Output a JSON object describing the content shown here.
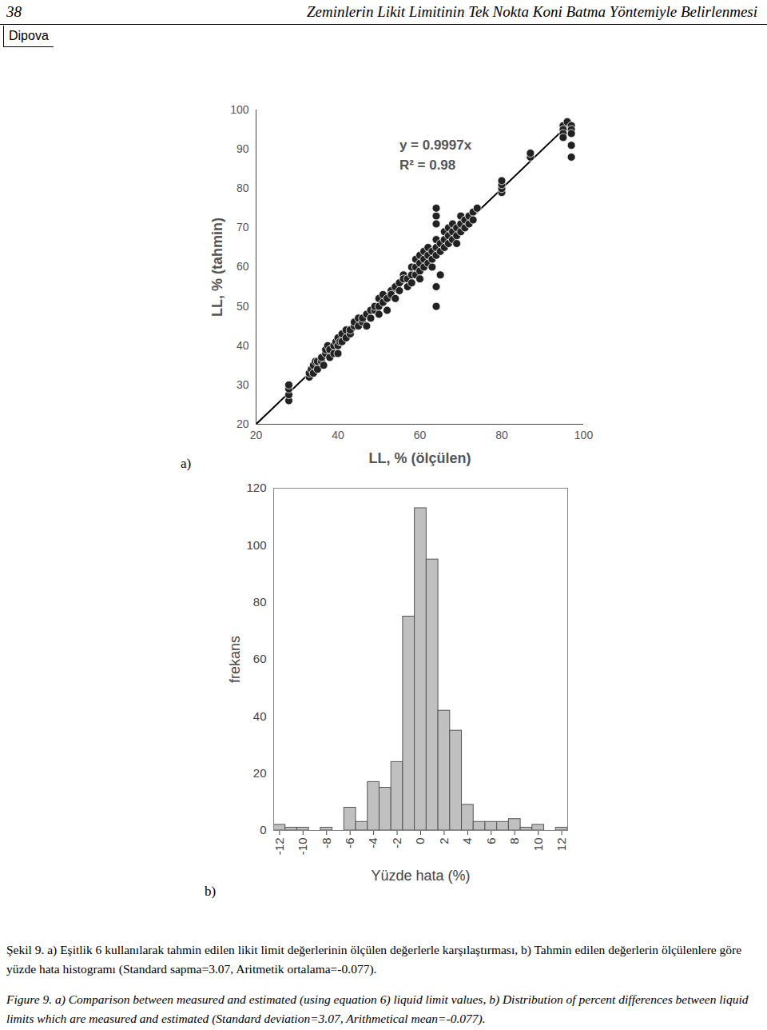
{
  "header": {
    "page_number": "38",
    "running_title": "Zeminlerin Likit Limitinin Tek Nokta Koni Batma Yöntemiyle Belirlenmesi",
    "author": "Dipova"
  },
  "chart_data": [
    {
      "type": "scatter",
      "panel": "a)",
      "x_label": "LL, % (ölçülen)",
      "y_label": "LL, % (tahmin)",
      "x": [
        28,
        28,
        28,
        28,
        33,
        33,
        33.5,
        34,
        34,
        34.5,
        35,
        35,
        36,
        36,
        36.5,
        37,
        37,
        37.5,
        38,
        38,
        39,
        39,
        39.5,
        40,
        40,
        40.5,
        40,
        41,
        41,
        42,
        42,
        43,
        43,
        44,
        44,
        45,
        45,
        46,
        46,
        47,
        47,
        48,
        48,
        49,
        49,
        50,
        50,
        50,
        51,
        51,
        52,
        52,
        53,
        53,
        54,
        54,
        55,
        55,
        56,
        56,
        57,
        57,
        58,
        58,
        58,
        59,
        59,
        59,
        60,
        60,
        60,
        60,
        61,
        61,
        61,
        62,
        62,
        62,
        63,
        63,
        63,
        64,
        64,
        64,
        64,
        64,
        64,
        64,
        64,
        65,
        65,
        65,
        66,
        66,
        66,
        67,
        67,
        67,
        68,
        68,
        68,
        69,
        69,
        69,
        70,
        70,
        70,
        71,
        71,
        72,
        72,
        73,
        73,
        74,
        80,
        80,
        80,
        80,
        87,
        87,
        95,
        95,
        95,
        95,
        96,
        97,
        97,
        97,
        97,
        97
      ],
      "values": [
        26,
        27.5,
        29,
        30,
        32,
        33,
        34,
        33,
        35,
        36,
        34,
        36,
        36,
        37,
        35,
        38,
        39,
        40,
        37,
        39,
        38,
        40,
        41,
        40,
        42,
        41,
        38,
        41,
        43,
        42,
        44,
        43,
        44,
        45,
        46,
        45,
        47,
        46,
        47,
        48,
        45,
        47,
        49,
        49,
        50,
        50,
        52,
        48,
        51,
        53,
        49,
        52,
        54,
        53,
        52,
        55,
        54,
        56,
        58,
        57,
        57,
        55,
        56,
        58,
        60,
        58,
        60,
        62,
        59,
        61,
        63,
        57,
        62,
        60,
        64,
        61,
        63,
        65,
        62,
        64,
        60,
        63,
        65,
        67,
        55,
        50,
        73,
        75,
        71,
        64,
        66,
        58,
        65,
        67,
        69,
        66,
        68,
        70,
        67,
        69,
        71,
        66,
        68,
        70,
        69,
        71,
        73,
        70,
        72,
        71,
        73,
        74,
        72,
        75,
        79,
        80,
        81,
        82,
        88,
        89,
        96,
        95,
        94,
        93,
        97,
        96,
        95,
        91,
        88,
        94
      ],
      "color": "#222222",
      "marker": "circle",
      "trendline": {
        "slope": 0.9997,
        "x": [
          20,
          97
        ]
      },
      "annotations": [
        {
          "text": "y = 0.9997x",
          "x": 55,
          "y": 91
        },
        {
          "text": "R² = 0.98",
          "x": 55,
          "y": 86
        }
      ],
      "xlim": [
        20,
        100
      ],
      "xticks": [
        20,
        40,
        60,
        80,
        100
      ],
      "ylim": [
        20,
        100
      ],
      "yticks": [
        20,
        30,
        40,
        50,
        60,
        70,
        80,
        90,
        100
      ],
      "grid": false
    },
    {
      "type": "histogram",
      "panel": "b)",
      "x_label": "Yüzde hata (%)",
      "y_label": "frekans",
      "bins": [
        -12.5,
        -11.5,
        -10.5,
        -9.5,
        -8.5,
        -7.5,
        -6.5,
        -5.5,
        -4.5,
        -3.5,
        -2.5,
        -1.5,
        -0.5,
        0.5,
        1.5,
        2.5,
        3.5,
        4.5,
        5.5,
        6.5,
        7.5,
        8.5,
        9.5,
        10.5,
        11.5,
        12.5
      ],
      "values": [
        2,
        1,
        1,
        0,
        1,
        0,
        8,
        3,
        17,
        15,
        24,
        75,
        113,
        95,
        42,
        35,
        9,
        3,
        3,
        3,
        4,
        1,
        2,
        0,
        1
      ],
      "color": "#c0c0c0",
      "xlim": [
        -12.5,
        12.5
      ],
      "xticks": [
        -12,
        -10,
        -8,
        -6,
        -4,
        -2,
        0,
        2,
        4,
        6,
        8,
        10,
        12
      ],
      "ylim": [
        0,
        120
      ],
      "yticks": [
        0,
        20,
        40,
        60,
        80,
        100,
        120
      ],
      "grid": false
    }
  ],
  "caption": {
    "tr": "Şekil 9. a) Eşitlik 6 kullanılarak tahmin edilen likit limit değerlerinin ölçülen değerlerle karşılaştırması, b) Tahmin edilen değerlerin ölçülenlere göre yüzde hata histogramı (Standard sapma=3.07, Aritmetik ortalama=-0.077).",
    "en": "Figure 9. a) Comparison between measured and estimated (using equation 6) liquid limit values, b) Distribution of percent differences between liquid limits which are measured and estimated (Standard deviation=3.07, Arithmetical mean=-0.077)."
  }
}
